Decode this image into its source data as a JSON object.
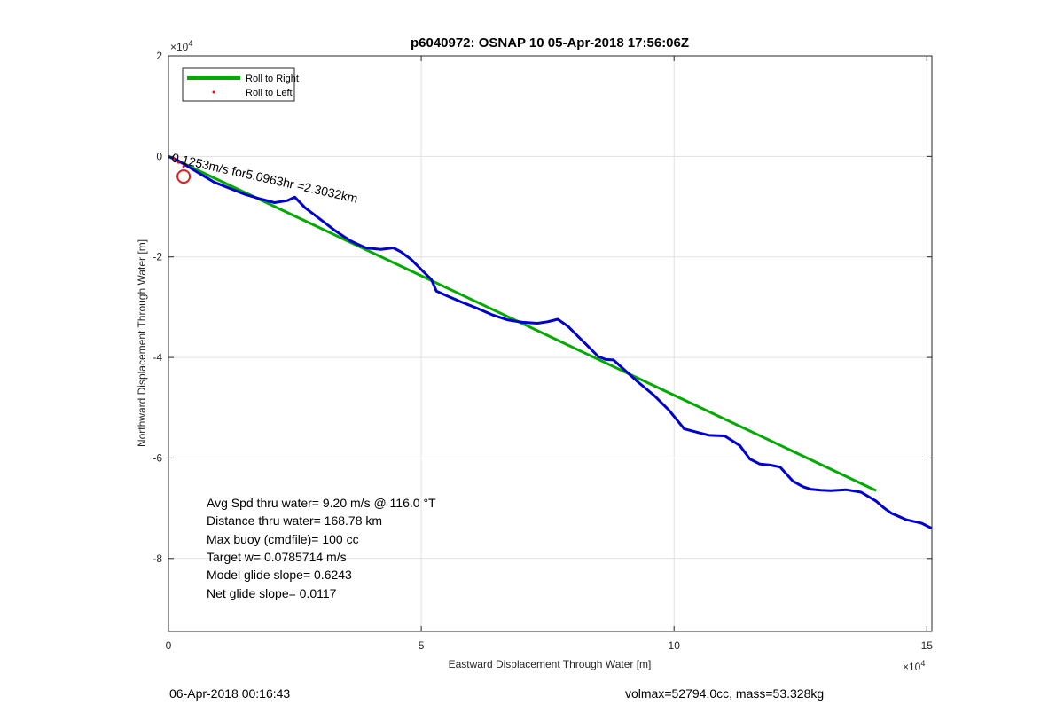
{
  "chart_data": {
    "type": "line",
    "title": "p6040972: OSNAP 10 05-Apr-2018 17:56:06Z",
    "xlabel": "Eastward Displacement Through Water [m]",
    "ylabel": "Northward Displacement Through Water [m]",
    "xlim": [
      0,
      151000
    ],
    "ylim": [
      -94500,
      20000
    ],
    "x_exponent_label": "×10",
    "x_exponent_power": "4",
    "y_exponent_label": "×10",
    "y_exponent_power": "4",
    "x_ticks": [
      0,
      50000,
      100000,
      150000
    ],
    "x_tick_labels": [
      "0",
      "5",
      "10",
      "15"
    ],
    "y_ticks": [
      20000,
      0,
      -20000,
      -40000,
      -60000,
      -80000
    ],
    "y_tick_labels": [
      "2",
      "0",
      "-2",
      "-4",
      "-6",
      "-8"
    ],
    "grid": true,
    "legend_position": "top-left",
    "legend": [
      "Roll to Right",
      "Roll to Left"
    ],
    "series": [
      {
        "name": "Roll to Right",
        "color": "#00aa00",
        "x": [
          0,
          140000
        ],
        "y": [
          0,
          -66500
        ]
      },
      {
        "name": "Roll to Left",
        "color": "#ff0000",
        "x": [
          1000,
          2000,
          3000
        ],
        "y": [
          -500,
          -1200,
          -2000
        ]
      },
      {
        "name": "",
        "color": "#0000cc",
        "x": [
          0,
          1500,
          3000,
          4500,
          6000,
          7500,
          9000,
          12000,
          15000,
          18000,
          21000,
          23500,
          25000,
          27000,
          30000,
          33000,
          36000,
          39000,
          42000,
          44500,
          46000,
          48000,
          50000,
          52000,
          53000,
          55000,
          58000,
          61000,
          64000,
          67000,
          70000,
          73000,
          75000,
          77000,
          79000,
          81000,
          83000,
          85000,
          86500,
          88000,
          90000,
          93000,
          96000,
          99000,
          102000,
          105000,
          107000,
          110000,
          113000,
          115000,
          117000,
          119000,
          121000,
          123500,
          125500,
          127000,
          129000,
          131000,
          134000,
          137000,
          140000,
          141500,
          143000,
          146000,
          149000,
          151000
        ],
        "y": [
          0,
          -600,
          -1500,
          -2400,
          -3300,
          -4200,
          -5100,
          -6300,
          -7500,
          -8400,
          -9200,
          -8800,
          -8100,
          -10200,
          -12500,
          -14800,
          -16800,
          -18200,
          -18500,
          -18200,
          -19000,
          -20500,
          -22500,
          -24500,
          -26800,
          -27700,
          -29000,
          -30200,
          -31500,
          -32500,
          -33000,
          -33200,
          -32900,
          -32400,
          -33800,
          -35800,
          -37800,
          -39800,
          -40400,
          -40500,
          -42300,
          -45000,
          -47500,
          -50500,
          -54200,
          -55000,
          -55500,
          -55600,
          -57500,
          -60200,
          -61200,
          -61400,
          -61800,
          -64600,
          -65700,
          -66200,
          -66400,
          -66500,
          -66300,
          -66800,
          -68600,
          -69900,
          -71000,
          -72300,
          -73000,
          -74000
        ]
      }
    ],
    "annotations": {
      "rotated_label": "0.1253m/s for5.0963hr =2.3032km",
      "info_lines": [
        "Avg Spd thru water=  9.20 m/s @ 116.0 °T",
        "Distance thru water= 168.78 km",
        "Max buoy (cmdfile)= 100 cc",
        "Target w= 0.0785714 m/s",
        "Model glide slope= 0.6243",
        "Net glide slope= 0.0117"
      ],
      "footer_left": "06-Apr-2018 00:16:43",
      "footer_right": "volmax=52794.0cc, mass=53.328kg",
      "marker_x": 3000,
      "marker_y": -4000
    }
  }
}
